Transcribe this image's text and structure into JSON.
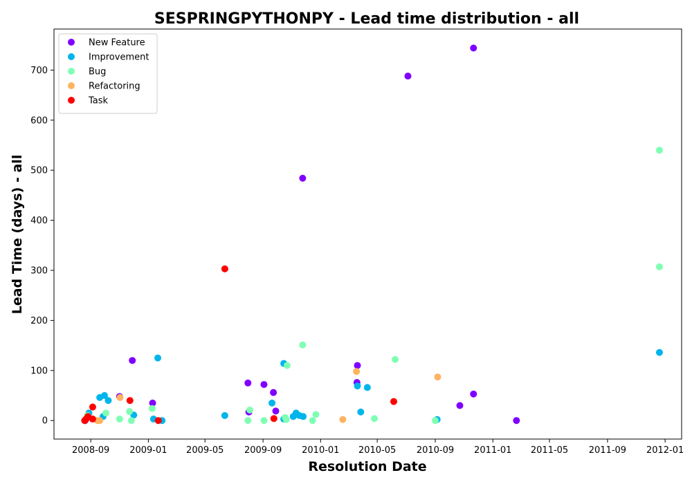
{
  "chart_data": {
    "type": "scatter",
    "title": "SESPRINGPYTHONPY - Lead time distribution - all",
    "xlabel": "Resolution Date",
    "ylabel": "Lead Time (days) - all",
    "x_ticks": [
      "2008-09",
      "2009-01",
      "2009-05",
      "2009-09",
      "2010-01",
      "2010-05",
      "2010-09",
      "2011-01",
      "2011-05",
      "2011-09",
      "2012-01"
    ],
    "y_ticks": [
      0,
      100,
      200,
      300,
      400,
      500,
      600,
      700
    ],
    "xlim": [
      "2008-06-15",
      "2012-02-05"
    ],
    "ylim": [
      -37,
      782
    ],
    "grid": false,
    "legend_position": "top-left",
    "series": [
      {
        "name": "New Feature",
        "color": "#8000ff",
        "points": [
          [
            "2008-08-20",
            0
          ],
          [
            "2008-11-01",
            48
          ],
          [
            "2008-11-28",
            120
          ],
          [
            "2009-01-10",
            35
          ],
          [
            "2009-08-02",
            17
          ],
          [
            "2009-07-31",
            75
          ],
          [
            "2009-09-03",
            72
          ],
          [
            "2009-09-23",
            56
          ],
          [
            "2009-09-28",
            19
          ],
          [
            "2009-11-24",
            484
          ],
          [
            "2010-03-20",
            110
          ],
          [
            "2010-03-19",
            76
          ],
          [
            "2010-07-05",
            688
          ],
          [
            "2010-10-23",
            30
          ],
          [
            "2010-11-21",
            744
          ],
          [
            "2010-11-21",
            53
          ],
          [
            "2011-02-20",
            0
          ]
        ]
      },
      {
        "name": "Improvement",
        "color": "#00b5eb",
        "points": [
          [
            "2008-08-28",
            15
          ],
          [
            "2008-09-20",
            46
          ],
          [
            "2008-09-27",
            8
          ],
          [
            "2008-09-30",
            50
          ],
          [
            "2008-10-08",
            40
          ],
          [
            "2008-12-01",
            11
          ],
          [
            "2009-01-12",
            3
          ],
          [
            "2009-01-21",
            125
          ],
          [
            "2009-01-30",
            0
          ],
          [
            "2009-06-12",
            10
          ],
          [
            "2009-09-20",
            35
          ],
          [
            "2009-10-15",
            114
          ],
          [
            "2009-10-15",
            3
          ],
          [
            "2009-11-04",
            8
          ],
          [
            "2009-11-10",
            15
          ],
          [
            "2009-11-17",
            10
          ],
          [
            "2009-11-25",
            8
          ],
          [
            "2010-03-20",
            69
          ],
          [
            "2010-03-27",
            17
          ],
          [
            "2010-04-10",
            66
          ],
          [
            "2010-09-05",
            2
          ],
          [
            "2011-12-20",
            136
          ]
        ]
      },
      {
        "name": "Bug",
        "color": "#80ffb4",
        "points": [
          [
            "2008-08-25",
            10
          ],
          [
            "2008-10-03",
            15
          ],
          [
            "2008-11-01",
            3
          ],
          [
            "2008-11-22",
            18
          ],
          [
            "2008-11-26",
            0
          ],
          [
            "2009-01-09",
            24
          ],
          [
            "2009-07-31",
            0
          ],
          [
            "2009-08-04",
            21
          ],
          [
            "2009-09-03",
            0
          ],
          [
            "2009-10-18",
            6
          ],
          [
            "2009-10-20",
            2
          ],
          [
            "2009-10-22",
            110
          ],
          [
            "2009-11-24",
            151
          ],
          [
            "2009-12-15",
            0
          ],
          [
            "2009-12-22",
            12
          ],
          [
            "2010-04-25",
            4
          ],
          [
            "2010-06-08",
            122
          ],
          [
            "2010-09-01",
            0
          ],
          [
            "2011-12-20",
            540
          ],
          [
            "2011-12-20",
            307
          ]
        ]
      },
      {
        "name": "Refactoring",
        "color": "#ffb360",
        "points": [
          [
            "2008-09-15",
            0
          ],
          [
            "2008-09-20",
            0
          ],
          [
            "2008-11-02",
            46
          ],
          [
            "2010-02-17",
            2
          ],
          [
            "2010-03-18",
            98
          ],
          [
            "2010-09-06",
            87
          ]
        ]
      },
      {
        "name": "Task",
        "color": "#ff0000",
        "points": [
          [
            "2008-08-19",
            0
          ],
          [
            "2008-08-22",
            3
          ],
          [
            "2008-08-26",
            8
          ],
          [
            "2008-09-05",
            27
          ],
          [
            "2008-09-05",
            3
          ],
          [
            "2008-11-23",
            40
          ],
          [
            "2009-01-22",
            0
          ],
          [
            "2009-06-12",
            303
          ],
          [
            "2009-09-24",
            4
          ],
          [
            "2010-06-05",
            38
          ]
        ]
      }
    ]
  }
}
